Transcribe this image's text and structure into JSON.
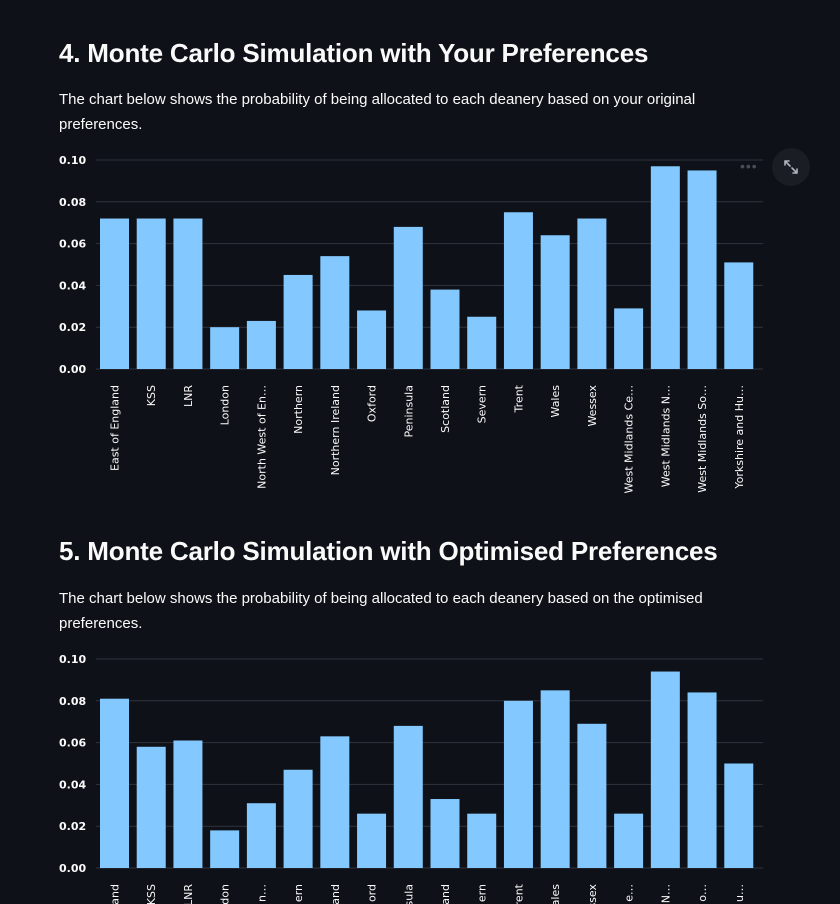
{
  "sections": [
    {
      "heading": "4. Monte Carlo Simulation with Your Preferences",
      "description": "The chart below shows the probability of being allocated to each deanery based on your original preferences."
    },
    {
      "heading": "5. Monte Carlo Simulation with Optimised Preferences",
      "description": "The chart below shows the probability of being allocated to each deanery based on the optimised preferences."
    }
  ],
  "toolbar": {
    "fullscreen_icon": "expand-icon",
    "more_icon": "more-horizontal-icon"
  },
  "chart_data": [
    {
      "type": "bar",
      "categories": [
        "East of England",
        "KSS",
        "LNR",
        "London",
        "North West of En…",
        "Northern",
        "Northern Ireland",
        "Oxford",
        "Peninsula",
        "Scotland",
        "Severn",
        "Trent",
        "Wales",
        "Wessex",
        "West Midlands Ce…",
        "West Midlands N…",
        "West Midlands So…",
        "Yorkshire and Hu…"
      ],
      "values": [
        0.072,
        0.072,
        0.072,
        0.02,
        0.023,
        0.045,
        0.054,
        0.028,
        0.068,
        0.038,
        0.025,
        0.075,
        0.064,
        0.072,
        0.029,
        0.097,
        0.095,
        0.051
      ],
      "yticks": [
        "0.00",
        "0.02",
        "0.04",
        "0.06",
        "0.08",
        "0.10"
      ],
      "ylim": [
        0,
        0.1
      ],
      "bar_color": "#83c9ff",
      "grid": true
    },
    {
      "type": "bar",
      "categories": [
        "and",
        "KSS",
        "LNR",
        "don",
        "n…",
        "ern",
        "and",
        "ord",
        "sula",
        "and",
        "ern",
        "rent",
        "ales",
        "ssex",
        "e…",
        "N…",
        "o…",
        "u…"
      ],
      "values": [
        0.081,
        0.058,
        0.061,
        0.018,
        0.031,
        0.047,
        0.063,
        0.026,
        0.068,
        0.033,
        0.026,
        0.08,
        0.085,
        0.069,
        0.026,
        0.094,
        0.084,
        0.05
      ],
      "yticks": [
        "0.00",
        "0.02",
        "0.04",
        "0.06",
        "0.08",
        "0.10"
      ],
      "ylim": [
        0,
        0.1
      ],
      "bar_color": "#83c9ff",
      "grid": true
    }
  ]
}
